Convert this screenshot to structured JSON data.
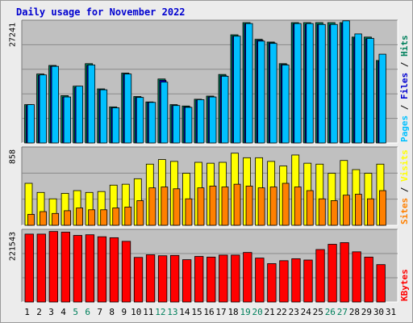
{
  "chart_data": {
    "type": "bar",
    "title": "Daily usage for November 2022",
    "categories": [
      "1",
      "2",
      "3",
      "4",
      "5",
      "6",
      "7",
      "8",
      "9",
      "10",
      "11",
      "12",
      "13",
      "14",
      "15",
      "16",
      "17",
      "18",
      "19",
      "20",
      "21",
      "22",
      "23",
      "24",
      "25",
      "26",
      "27",
      "28",
      "29",
      "30",
      "31"
    ],
    "weekend_days": [
      "5",
      "6",
      "12",
      "13",
      "19",
      "20",
      "26",
      "27"
    ],
    "colors": {
      "hits": "#00805c",
      "files": "#0000d0",
      "pages": "#00c0ff",
      "visits": "#ffff00",
      "sites": "#ff8000",
      "kbytes": "#ff0000",
      "weekday_label": "#000000",
      "weekend_label": "#00805c",
      "title": "#0000d0"
    },
    "panels": [
      {
        "name": "hits-files-pages",
        "max_label": "27241",
        "ylim": [
          0,
          27241
        ],
        "legend": [
          {
            "text": "Pages",
            "color": "#00c0ff"
          },
          {
            "text": " / ",
            "color": "#000000"
          },
          {
            "text": "Files",
            "color": "#0000d0"
          },
          {
            "text": " / ",
            "color": "#000000"
          },
          {
            "text": "Hits",
            "color": "#00805c"
          }
        ],
        "series": [
          {
            "name": "Hits",
            "values": [
              8500,
              15300,
              17200,
              10500,
              12600,
              17600,
              12000,
              8000,
              15500,
              10300,
              9100,
              14200,
              8500,
              8200,
              9700,
              10400,
              15200,
              24000,
              26700,
              23000,
              22400,
              17600,
              26700,
              26700,
              26700,
              26700,
              26700,
              23500,
              23500,
              18300,
              0
            ]
          },
          {
            "name": "Files",
            "values": [
              8300,
              15000,
              17000,
              10200,
              12300,
              17200,
              11800,
              7800,
              15300,
              10100,
              9000,
              13900,
              8300,
              8000,
              9500,
              10200,
              14900,
              23700,
              26400,
              22800,
              22200,
              17400,
              26400,
              26300,
              26300,
              26200,
              26500,
              23300,
              23100,
              18100,
              0
            ]
          },
          {
            "name": "Pages",
            "values": [
              8500,
              15100,
              17000,
              10200,
              12600,
              17300,
              11800,
              7800,
              15300,
              10100,
              9000,
              13500,
              8300,
              7900,
              9600,
              10200,
              14800,
              23700,
              26500,
              22600,
              22100,
              17300,
              26500,
              26500,
              26300,
              26300,
              27100,
              24200,
              23200,
              19700,
              0
            ]
          }
        ]
      },
      {
        "name": "visits-sites",
        "max_label": "858",
        "ylim": [
          0,
          858
        ],
        "legend": [
          {
            "text": "Sites",
            "color": "#ff8000"
          },
          {
            "text": " / ",
            "color": "#000000"
          },
          {
            "text": "Visits",
            "color": "#ffff00"
          }
        ],
        "series": [
          {
            "name": "Visits",
            "values": [
              460,
              360,
              290,
              350,
              380,
              360,
              370,
              440,
              450,
              510,
              670,
              720,
              700,
              570,
              690,
              680,
              690,
              790,
              740,
              740,
              700,
              650,
              770,
              680,
              670,
              570,
              710,
              610,
              570,
              670,
              0
            ]
          },
          {
            "name": "Sites",
            "values": [
              120,
              150,
              130,
              160,
              190,
              170,
              170,
              190,
              200,
              270,
              410,
              420,
              400,
              290,
              410,
              430,
              420,
              450,
              430,
              410,
              420,
              460,
              420,
              380,
              290,
              270,
              330,
              340,
              290,
              380,
              0
            ]
          }
        ]
      },
      {
        "name": "kbytes",
        "max_label": "221543",
        "ylim": [
          0,
          221543
        ],
        "legend": [
          {
            "text": "KBytes",
            "color": "#ff0000"
          }
        ],
        "series": [
          {
            "name": "KBytes",
            "values": [
              207000,
              207000,
              215000,
              213000,
              203000,
              205000,
              199000,
              196000,
              185000,
              136000,
              144000,
              141000,
              142000,
              129000,
              139000,
              137000,
              143000,
              143000,
              151000,
              134000,
              117000,
              126000,
              132000,
              128000,
              160000,
              176000,
              181000,
              153000,
              137000,
              114000,
              0
            ]
          }
        ]
      }
    ]
  }
}
